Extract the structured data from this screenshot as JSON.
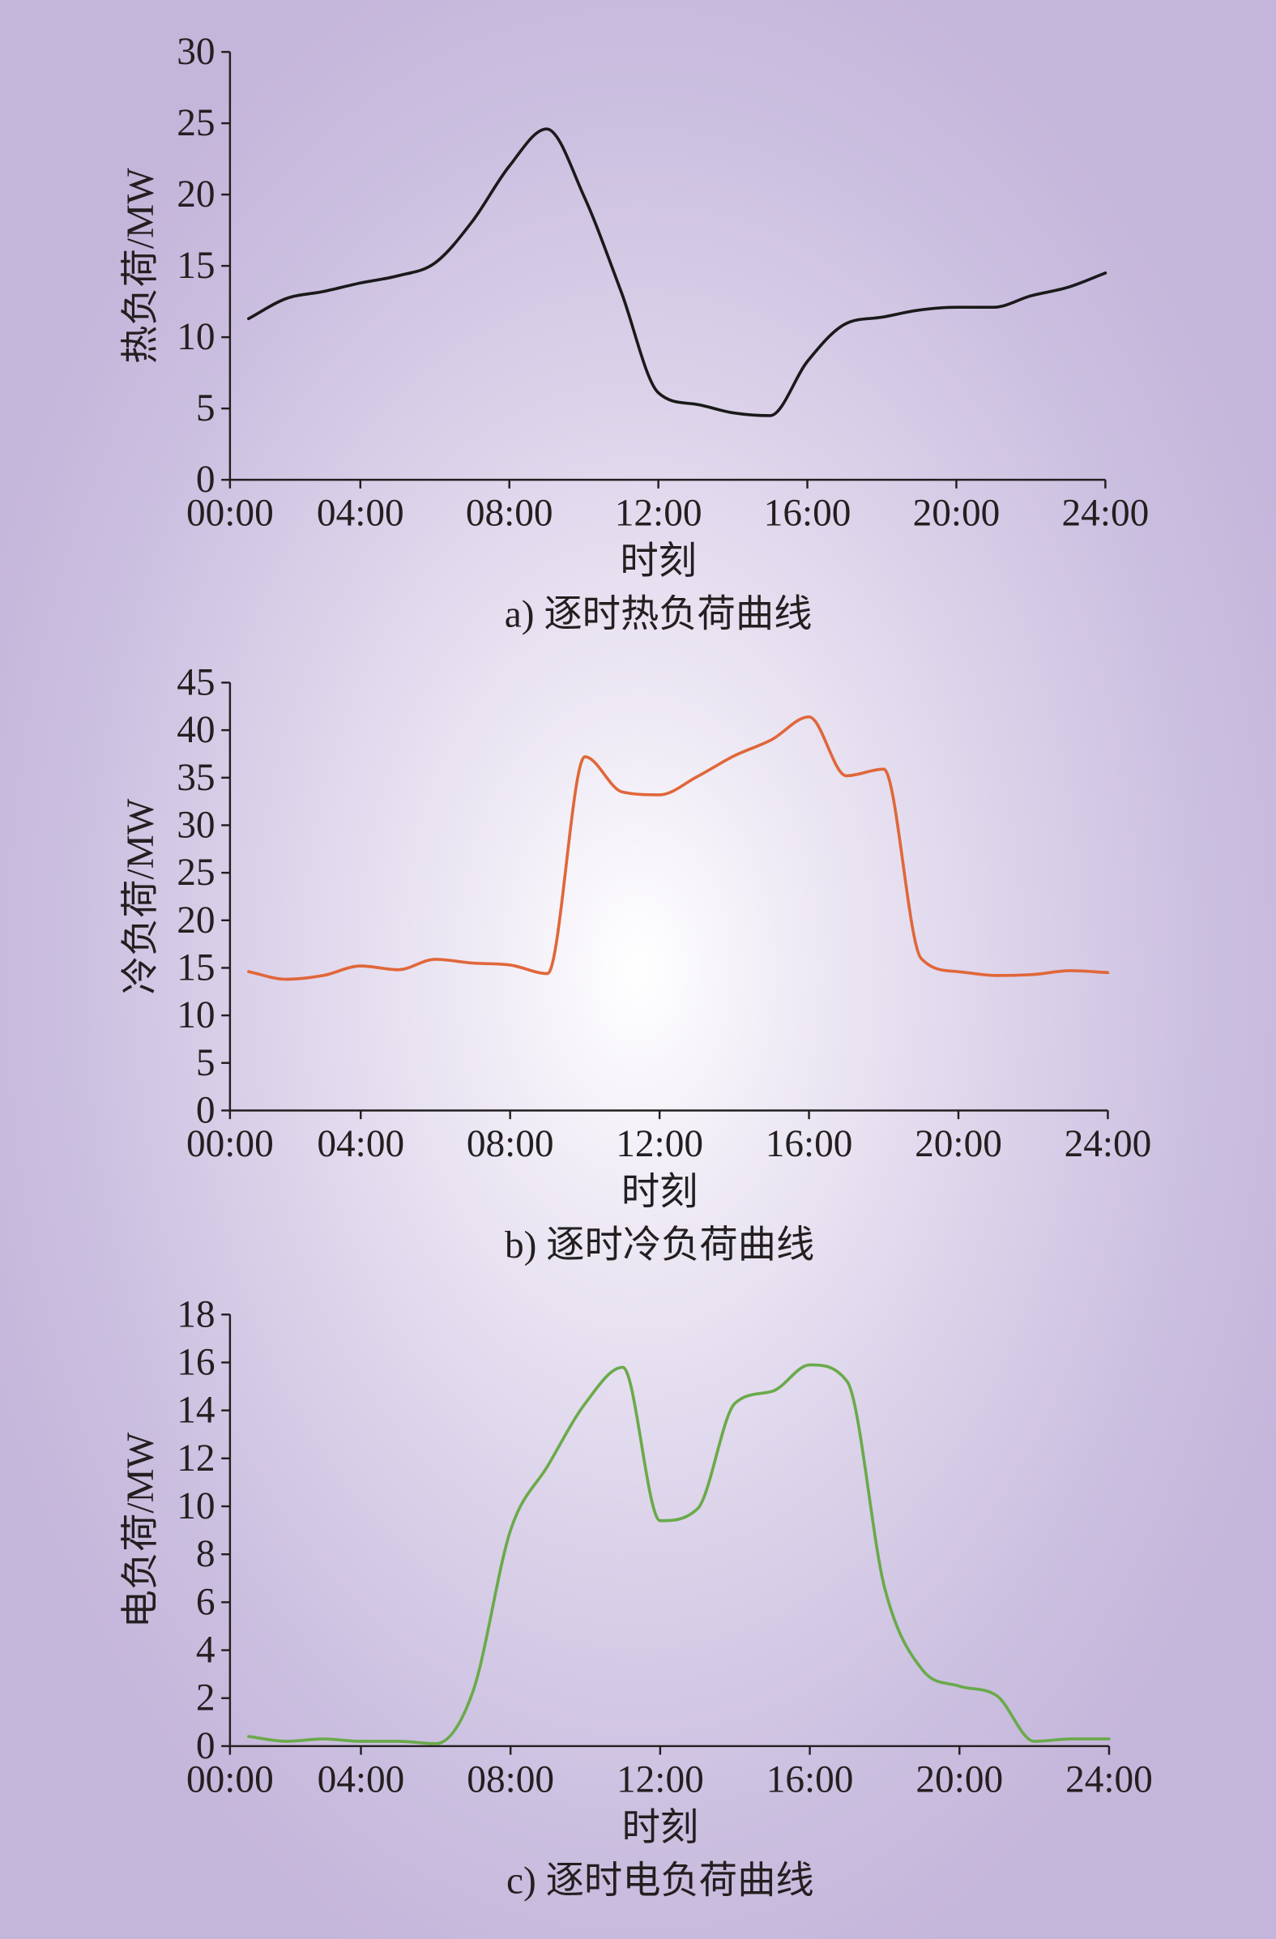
{
  "chart_data": [
    {
      "type": "line",
      "caption": "a) 逐时热负荷曲线",
      "xlabel": "时刻",
      "ylabel": "热负荷/MW",
      "x": [
        "01:00",
        "02:00",
        "03:00",
        "04:00",
        "05:00",
        "06:00",
        "07:00",
        "08:00",
        "09:00",
        "10:00",
        "11:00",
        "12:00",
        "13:00",
        "14:00",
        "15:00",
        "16:00",
        "17:00",
        "18:00",
        "19:00",
        "20:00",
        "21:00",
        "22:00",
        "23:00",
        "24:00"
      ],
      "xlim": [
        "00:30",
        "24:00"
      ],
      "xtick_labels": [
        "00:00",
        "04:00",
        "08:00",
        "12:00",
        "16:00",
        "20:00",
        "24:00"
      ],
      "ylim": [
        0,
        30
      ],
      "yticks": [
        0,
        5,
        10,
        15,
        20,
        25,
        30
      ],
      "grid": false,
      "series": [
        {
          "color": "#1a1a1a",
          "values": [
            11.3,
            12.7,
            13.2,
            13.8,
            14.3,
            15.2,
            18.1,
            22.0,
            24.6,
            19.9,
            13.2,
            6.1,
            5.3,
            4.7,
            4.5,
            8.3,
            10.9,
            11.4,
            11.9,
            12.1,
            12.1,
            12.9,
            13.5,
            14.5
          ]
        }
      ]
    },
    {
      "type": "line",
      "caption": "b) 逐时冷负荷曲线",
      "xlabel": "时刻",
      "ylabel": "冷负荷/MW",
      "x": [
        "01:00",
        "02:00",
        "03:00",
        "04:00",
        "05:00",
        "06:00",
        "07:00",
        "08:00",
        "09:00",
        "10:00",
        "11:00",
        "12:00",
        "13:00",
        "14:00",
        "15:00",
        "16:00",
        "17:00",
        "18:00",
        "19:00",
        "20:00",
        "21:00",
        "22:00",
        "23:00",
        "24:00"
      ],
      "xlim": [
        "00:30",
        "24:00"
      ],
      "xtick_labels": [
        "00:00",
        "04:00",
        "08:00",
        "12:00",
        "16:00",
        "20:00",
        "24:00"
      ],
      "ylim": [
        0,
        45
      ],
      "yticks": [
        0,
        5,
        10,
        15,
        20,
        25,
        30,
        35,
        40,
        45
      ],
      "grid": false,
      "series": [
        {
          "color": "#e0673a",
          "values": [
            14.6,
            13.8,
            14.2,
            15.2,
            14.8,
            15.9,
            15.5,
            15.3,
            14.4,
            37.2,
            33.5,
            33.2,
            35.1,
            37.3,
            39.0,
            41.4,
            35.2,
            35.9,
            16.0,
            14.6,
            14.2,
            14.3,
            14.7,
            14.5
          ]
        }
      ]
    },
    {
      "type": "line",
      "caption": "c) 逐时电负荷曲线",
      "xlabel": "时刻",
      "ylabel": "电负荷/MW",
      "x": [
        "01:00",
        "02:00",
        "03:00",
        "04:00",
        "05:00",
        "06:00",
        "07:00",
        "08:00",
        "09:00",
        "10:00",
        "11:00",
        "12:00",
        "13:00",
        "14:00",
        "15:00",
        "16:00",
        "17:00",
        "18:00",
        "19:00",
        "20:00",
        "21:00",
        "22:00",
        "23:00",
        "24:00"
      ],
      "xlim": [
        "00:30",
        "24:00"
      ],
      "xtick_labels": [
        "00:00",
        "04:00",
        "08:00",
        "12:00",
        "16:00",
        "20:00",
        "24:00"
      ],
      "ylim": [
        0,
        18
      ],
      "yticks": [
        0,
        2,
        4,
        6,
        8,
        10,
        12,
        14,
        16,
        18
      ],
      "grid": false,
      "series": [
        {
          "color": "#6aaa4a",
          "values": [
            0.4,
            0.2,
            0.3,
            0.2,
            0.2,
            0.1,
            2.3,
            9.0,
            11.7,
            14.3,
            15.8,
            9.4,
            9.9,
            14.3,
            14.8,
            15.9,
            15.2,
            6.6,
            3.2,
            2.5,
            2.1,
            0.2,
            0.3,
            0.3
          ]
        }
      ]
    }
  ]
}
